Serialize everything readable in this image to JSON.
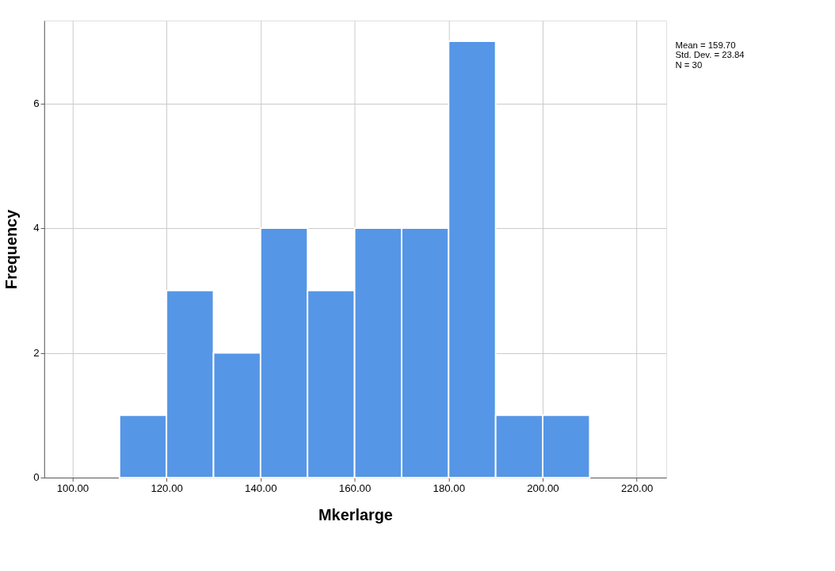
{
  "chart_data": {
    "type": "histogram",
    "xlabel": "Mkerlarge",
    "ylabel": "Frequency",
    "bins": [
      110,
      120,
      130,
      140,
      150,
      160,
      170,
      180,
      190,
      200,
      210
    ],
    "values": [
      1,
      3,
      2,
      4,
      3,
      4,
      4,
      7,
      1,
      1
    ],
    "color": "#5596e6",
    "xlim": [
      94,
      226.3
    ],
    "ylim": [
      0,
      7.33
    ],
    "xticks": [
      {
        "value": 100,
        "label": "100.00"
      },
      {
        "value": 120,
        "label": "120.00"
      },
      {
        "value": 140,
        "label": "140.00"
      },
      {
        "value": 160,
        "label": "160.00"
      },
      {
        "value": 180,
        "label": "180.00"
      },
      {
        "value": 200,
        "label": "200.00"
      },
      {
        "value": 220,
        "label": "220.00"
      }
    ],
    "yticks": [
      0,
      2,
      4,
      6
    ],
    "grid": true,
    "annotations": [
      "Mean = 159.70",
      "Std. Dev. = 23.84",
      "N = 30"
    ]
  }
}
